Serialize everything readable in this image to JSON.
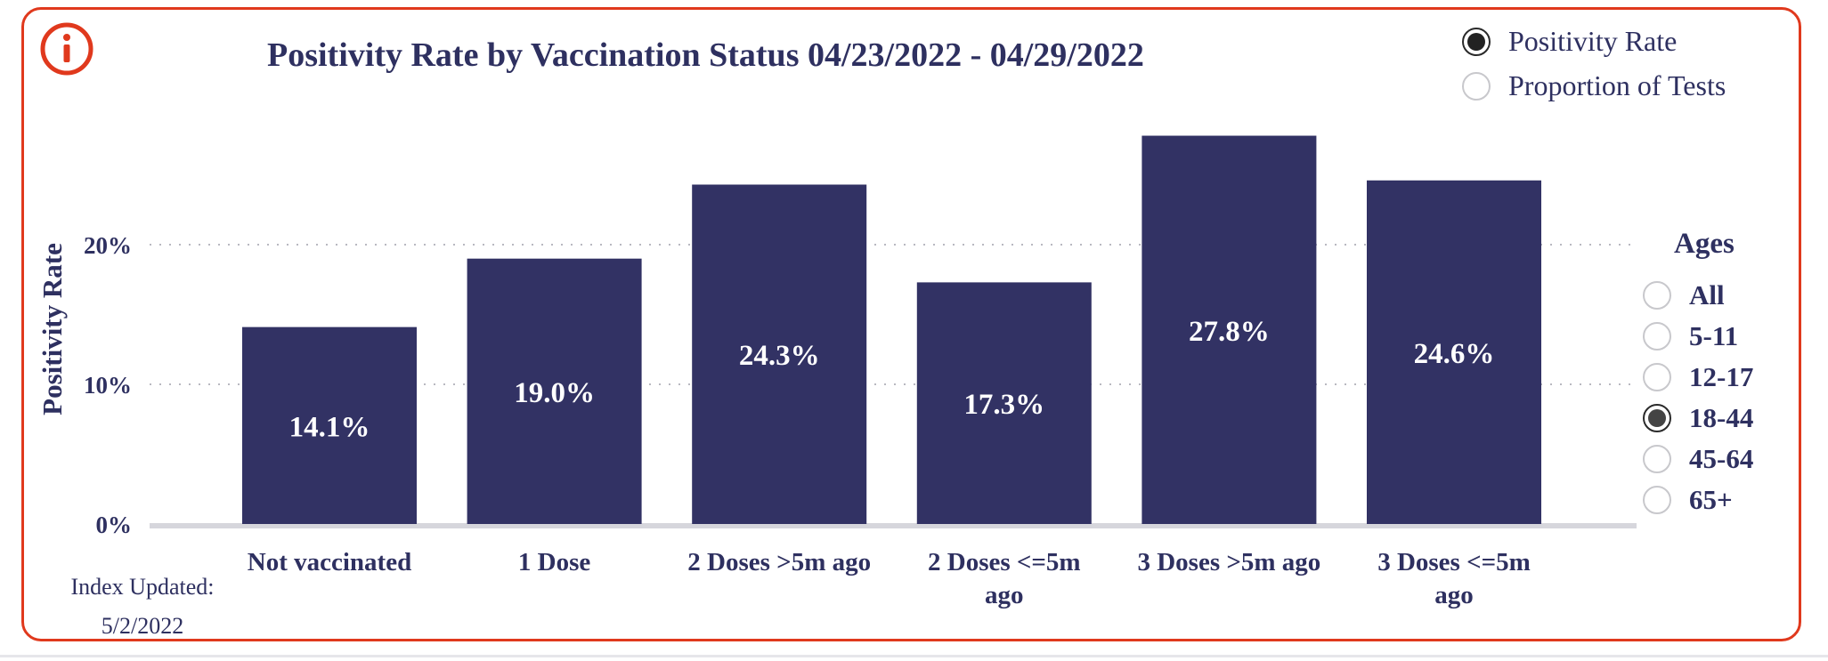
{
  "chart_data": {
    "type": "bar",
    "title": "Positivity Rate by Vaccination Status 04/23/2022 - 04/29/2022",
    "ylabel": "Positivity Rate",
    "xlabel": "",
    "categories": [
      [
        "Not vaccinated"
      ],
      [
        "1 Dose"
      ],
      [
        "2 Doses >5m ago"
      ],
      [
        "2 Doses <=5m",
        "ago"
      ],
      [
        "3 Doses >5m ago"
      ],
      [
        "3 Doses <=5m",
        "ago"
      ]
    ],
    "values": [
      14.1,
      19.0,
      24.3,
      17.3,
      27.8,
      24.6
    ],
    "data_labels": [
      "14.1%",
      "19.0%",
      "24.3%",
      "17.3%",
      "27.8%",
      "24.6%"
    ],
    "ylim": [
      0,
      30
    ],
    "y_ticks": [
      0,
      10,
      20
    ],
    "y_tick_labels": [
      "0%",
      "10%",
      "20%"
    ],
    "grid": "horizontal dotted",
    "bar_color": "#323264",
    "label_color": "#ffffff"
  },
  "metric_toggle": {
    "options": [
      {
        "label": "Positivity Rate",
        "selected": true
      },
      {
        "label": "Proportion of Tests",
        "selected": false
      }
    ]
  },
  "ages": {
    "title": "Ages",
    "options": [
      {
        "label": "All",
        "selected": false
      },
      {
        "label": "5-11",
        "selected": false
      },
      {
        "label": "12-17",
        "selected": false
      },
      {
        "label": "18-44",
        "selected": true
      },
      {
        "label": "45-64",
        "selected": false
      },
      {
        "label": "65+",
        "selected": false
      }
    ]
  },
  "index_updated": {
    "label": "Index Updated:",
    "date": "5/2/2022"
  },
  "colors": {
    "frame": "#e0391d",
    "accent": "#e0391d",
    "text": "#2e3060"
  },
  "info_icon": "info-icon"
}
